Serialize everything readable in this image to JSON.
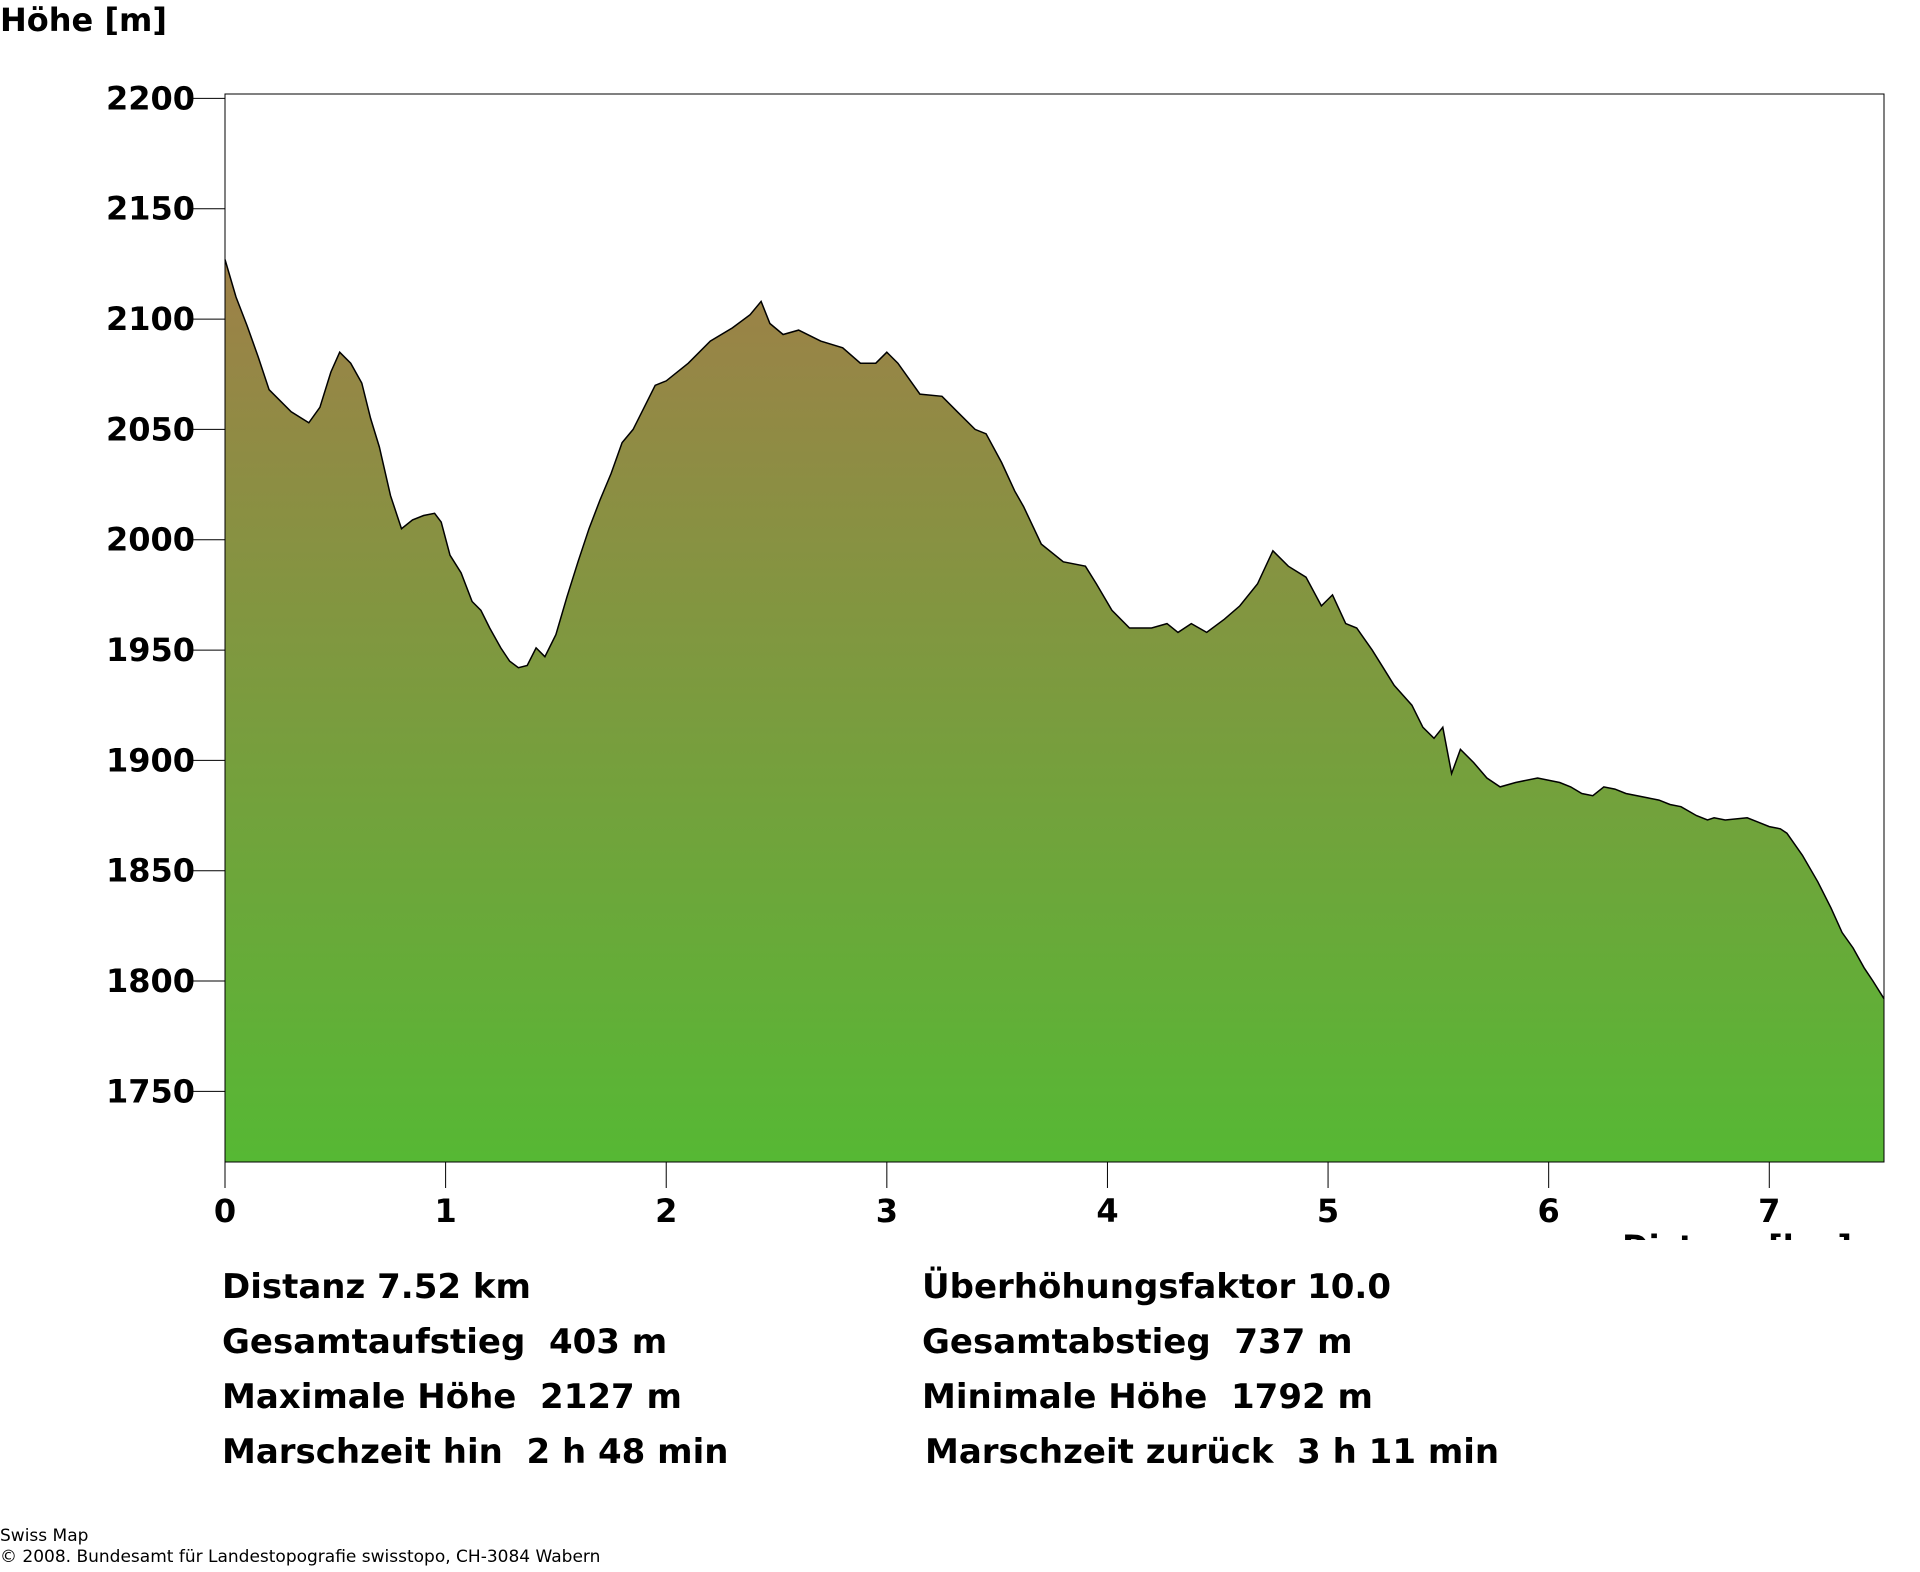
{
  "chart_data": {
    "type": "area",
    "ylabel": "Höhe [m]",
    "xlabel": "Distanz [km]",
    "xlim": [
      0,
      7.52
    ],
    "ylim": [
      1718,
      2202
    ],
    "x_ticks": [
      0,
      1,
      2,
      3,
      4,
      5,
      6,
      7
    ],
    "x_tick_labels": [
      "0",
      "1",
      "2",
      "3",
      "4",
      "5",
      "6",
      "7"
    ],
    "y_ticks": [
      2200,
      2150,
      2100,
      2050,
      2000,
      1950,
      1900,
      1850,
      1800,
      1750
    ],
    "y_tick_labels": [
      "2200",
      "2150",
      "2100",
      "2050",
      "2000",
      "1950",
      "1900",
      "1850",
      "1800",
      "1750"
    ],
    "grid": false,
    "fill_gradient": {
      "top": "#9e8048",
      "bottom": "#56b834"
    },
    "line_color": "#000000",
    "x": [
      0,
      0.05,
      0.1,
      0.15,
      0.2,
      0.3,
      0.38,
      0.43,
      0.48,
      0.52,
      0.57,
      0.62,
      0.66,
      0.7,
      0.75,
      0.8,
      0.85,
      0.9,
      0.95,
      0.98,
      1.02,
      1.07,
      1.12,
      1.16,
      1.2,
      1.25,
      1.29,
      1.33,
      1.37,
      1.41,
      1.45,
      1.5,
      1.55,
      1.6,
      1.65,
      1.7,
      1.75,
      1.8,
      1.85,
      1.9,
      1.95,
      2.0,
      2.1,
      2.2,
      2.3,
      2.38,
      2.43,
      2.47,
      2.53,
      2.6,
      2.7,
      2.8,
      2.88,
      2.95,
      3.0,
      3.05,
      3.15,
      3.25,
      3.32,
      3.4,
      3.45,
      3.52,
      3.58,
      3.62,
      3.7,
      3.8,
      3.9,
      3.95,
      4.02,
      4.1,
      4.2,
      4.27,
      4.32,
      4.38,
      4.45,
      4.53,
      4.6,
      4.68,
      4.75,
      4.82,
      4.9,
      4.97,
      5.02,
      5.08,
      5.13,
      5.2,
      5.25,
      5.3,
      5.38,
      5.43,
      5.48,
      5.52,
      5.56,
      5.6,
      5.66,
      5.72,
      5.78,
      5.85,
      5.95,
      6.05,
      6.1,
      6.15,
      6.2,
      6.25,
      6.3,
      6.35,
      6.45,
      6.5,
      6.55,
      6.6,
      6.67,
      6.72,
      6.75,
      6.8,
      6.9,
      6.95,
      7.0,
      7.05,
      7.08,
      7.15,
      7.22,
      7.28,
      7.33,
      7.38,
      7.43,
      7.47,
      7.52
    ],
    "y": [
      2127,
      2110,
      2097,
      2083,
      2068,
      2058,
      2053,
      2060,
      2076,
      2085,
      2080,
      2071,
      2055,
      2042,
      2020,
      2005,
      2009,
      2011,
      2012,
      2008,
      1993,
      1985,
      1972,
      1968,
      1960,
      1951,
      1945,
      1942,
      1943,
      1951,
      1947,
      1957,
      1974,
      1990,
      2005,
      2018,
      2030,
      2044,
      2050,
      2060,
      2070,
      2072,
      2080,
      2090,
      2096,
      2102,
      2108,
      2098,
      2093,
      2095,
      2090,
      2087,
      2080,
      2080,
      2085,
      2080,
      2066,
      2065,
      2058,
      2050,
      2048,
      2035,
      2022,
      2015,
      1998,
      1990,
      1988,
      1980,
      1968,
      1960,
      1960,
      1962,
      1958,
      1962,
      1958,
      1964,
      1970,
      1980,
      1995,
      1988,
      1983,
      1970,
      1975,
      1962,
      1960,
      1950,
      1942,
      1934,
      1925,
      1915,
      1910,
      1915,
      1894,
      1905,
      1899,
      1892,
      1888,
      1890,
      1892,
      1890,
      1888,
      1885,
      1884,
      1888,
      1887,
      1885,
      1883,
      1882,
      1880,
      1879,
      1875,
      1873,
      1874,
      1873,
      1874,
      1872,
      1870,
      1869,
      1867,
      1857,
      1845,
      1833,
      1822,
      1815,
      1806,
      1800,
      1792
    ]
  },
  "stats": {
    "distanz": "Distanz 7.52 km",
    "ueberhoehung": "Überhöhungsfaktor 10.0",
    "aufstieg": "Gesamtaufstieg  403 m",
    "abstieg": "Gesamtabstieg  737 m",
    "max_hoehe": "Maximale Höhe  2127 m",
    "min_hoehe": "Minimale Höhe  1792 m",
    "marsch_hin": "Marschzeit hin  2 h 48 min",
    "marsch_zurueck": "Marschzeit zurück  3 h 11 min"
  },
  "footer": {
    "line1": "Swiss Map",
    "line2": "© 2008. Bundesamt für Landestopografie swisstopo, CH-3084 Wabern"
  }
}
